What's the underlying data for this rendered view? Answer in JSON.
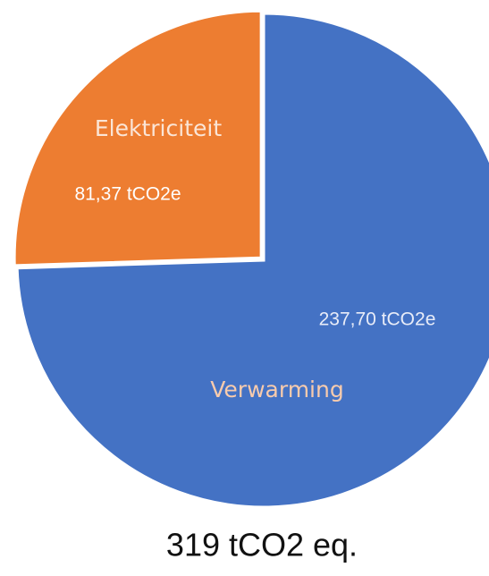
{
  "chart_data": {
    "type": "pie",
    "categories": [
      "Verwarming",
      "Elektriciteit"
    ],
    "values": [
      237.7,
      81.37
    ],
    "value_labels": [
      "237,70 tCO2e",
      "81,37 tCO2e"
    ],
    "colors": [
      "#4472c4",
      "#ed7d31"
    ],
    "annotation": "319 tCO2 eq."
  }
}
